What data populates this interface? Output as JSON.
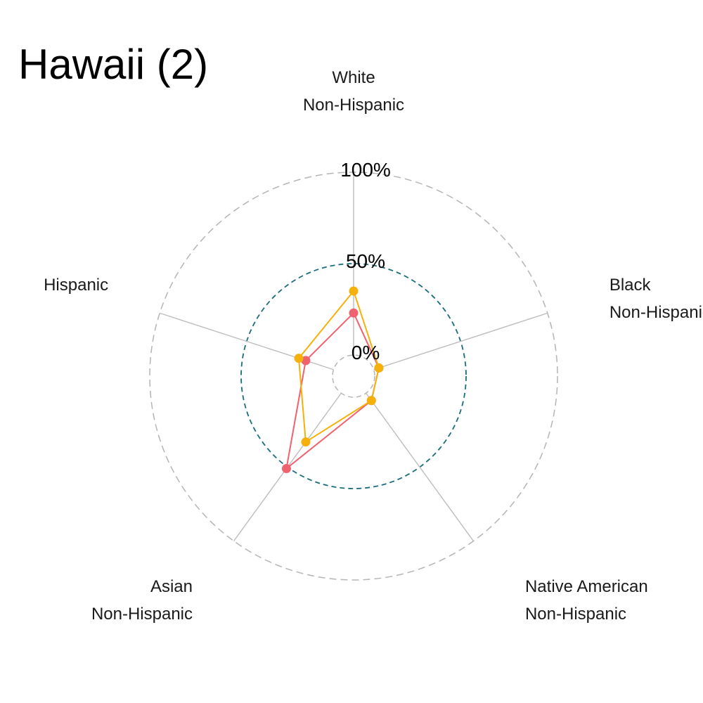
{
  "chart_data": {
    "type": "radar",
    "title": "Hawaii (2)",
    "axes": [
      {
        "lines": [
          "White",
          "Non-Hispanic"
        ]
      },
      {
        "lines": [
          "Black",
          "Non-Hispanic"
        ]
      },
      {
        "lines": [
          "Native American",
          "Non-Hispanic"
        ]
      },
      {
        "lines": [
          "Asian",
          "Non-Hispanic"
        ]
      },
      {
        "lines": [
          "Hispanic"
        ]
      }
    ],
    "radial_ticks": [
      {
        "value": 0,
        "label": "0%"
      },
      {
        "value": 50,
        "label": "50%"
      },
      {
        "value": 100,
        "label": "100%"
      }
    ],
    "rlim": [
      0,
      100
    ],
    "series": [
      {
        "color": "#f0626e",
        "values": [
          23,
          3,
          5,
          51,
          16
        ]
      },
      {
        "color": "#f5b10a",
        "values": [
          35,
          3,
          5,
          33,
          20
        ]
      }
    ],
    "grid_colors": {
      "outer": "#b5b5b5",
      "mid": "#1a6e7a",
      "inner": "#b5b5b5",
      "spokes": "#bdbdbd"
    }
  }
}
